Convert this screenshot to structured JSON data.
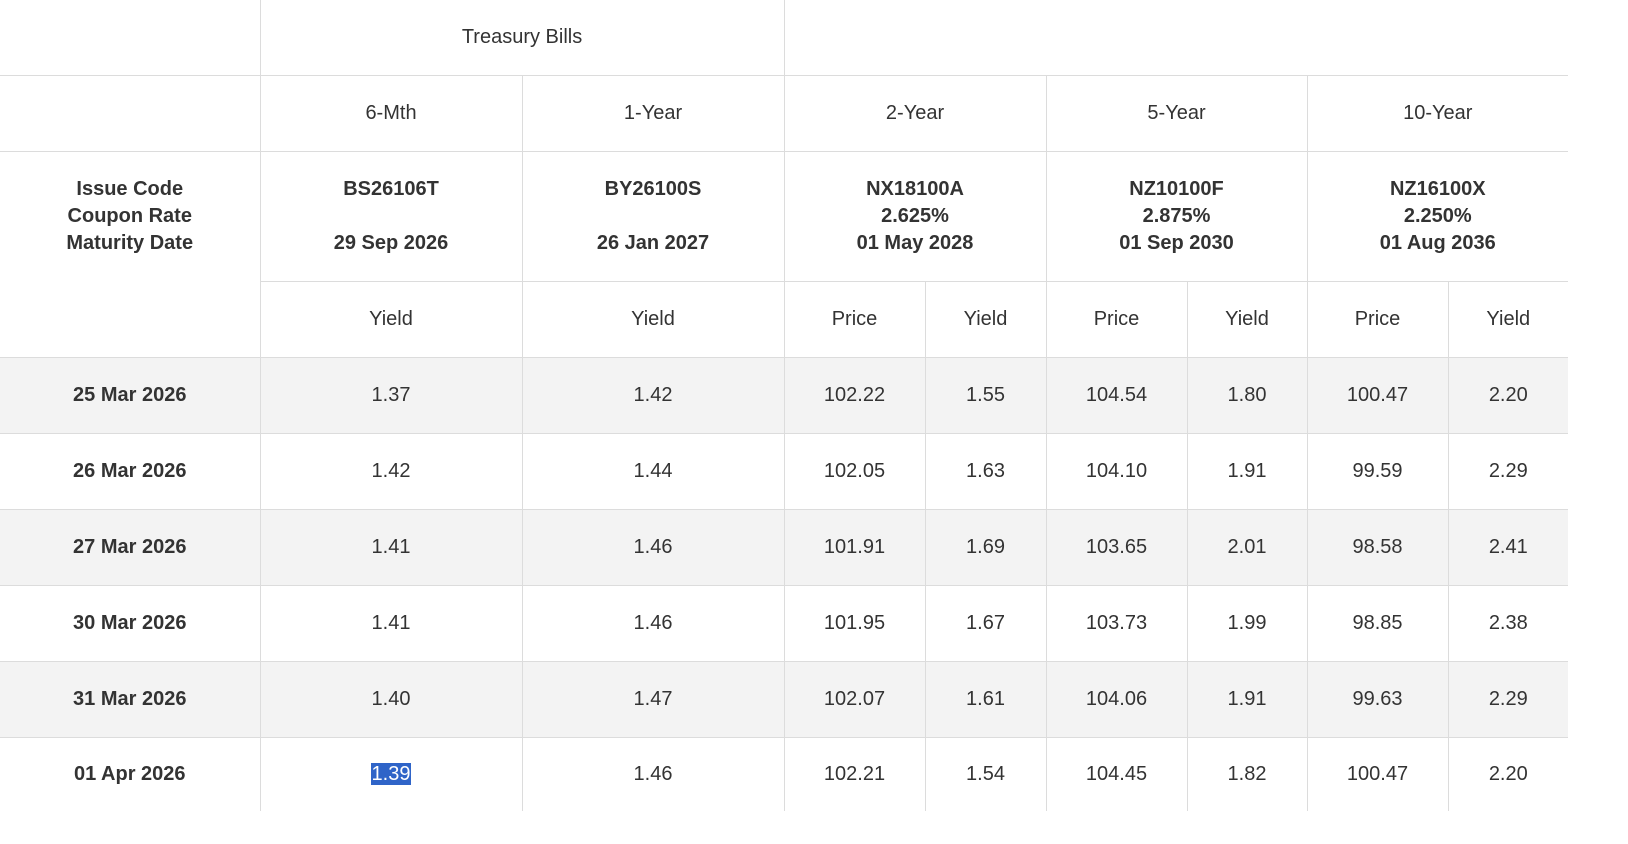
{
  "header": {
    "group_label": "Treasury Bills",
    "tenors": [
      "6-Mth",
      "1-Year",
      "2-Year",
      "5-Year",
      "10-Year"
    ],
    "row_labels": [
      "Issue Code",
      "Coupon Rate",
      "Maturity Date"
    ]
  },
  "issues": [
    {
      "code": "BS26106T",
      "coupon": "",
      "maturity": "29 Sep 2026"
    },
    {
      "code": "BY26100S",
      "coupon": "",
      "maturity": "26 Jan 2027"
    },
    {
      "code": "NX18100A",
      "coupon": "2.625%",
      "maturity": "01 May 2028"
    },
    {
      "code": "NZ10100F",
      "coupon": "2.875%",
      "maturity": "01 Sep 2030"
    },
    {
      "code": "NZ16100X",
      "coupon": "2.250%",
      "maturity": "01 Aug 2036"
    }
  ],
  "subheaders": {
    "yield": "Yield",
    "price": "Price"
  },
  "rows": [
    {
      "date": "25 Mar 2026",
      "v": [
        "1.37",
        "1.42",
        "102.22",
        "1.55",
        "104.54",
        "1.80",
        "100.47",
        "2.20"
      ]
    },
    {
      "date": "26 Mar 2026",
      "v": [
        "1.42",
        "1.44",
        "102.05",
        "1.63",
        "104.10",
        "1.91",
        "99.59",
        "2.29"
      ]
    },
    {
      "date": "27 Mar 2026",
      "v": [
        "1.41",
        "1.46",
        "101.91",
        "1.69",
        "103.65",
        "2.01",
        "98.58",
        "2.41"
      ]
    },
    {
      "date": "30 Mar 2026",
      "v": [
        "1.41",
        "1.46",
        "101.95",
        "1.67",
        "103.73",
        "1.99",
        "98.85",
        "2.38"
      ]
    },
    {
      "date": "31 Mar 2026",
      "v": [
        "1.40",
        "1.47",
        "102.07",
        "1.61",
        "104.06",
        "1.91",
        "99.63",
        "2.29"
      ]
    },
    {
      "date": "01 Apr 2026",
      "v": [
        "1.39",
        "1.46",
        "102.21",
        "1.54",
        "104.45",
        "1.82",
        "100.47",
        "2.20"
      ]
    }
  ],
  "selection_color": "#2f64c8",
  "shaded_row_color": "#f3f3f3"
}
